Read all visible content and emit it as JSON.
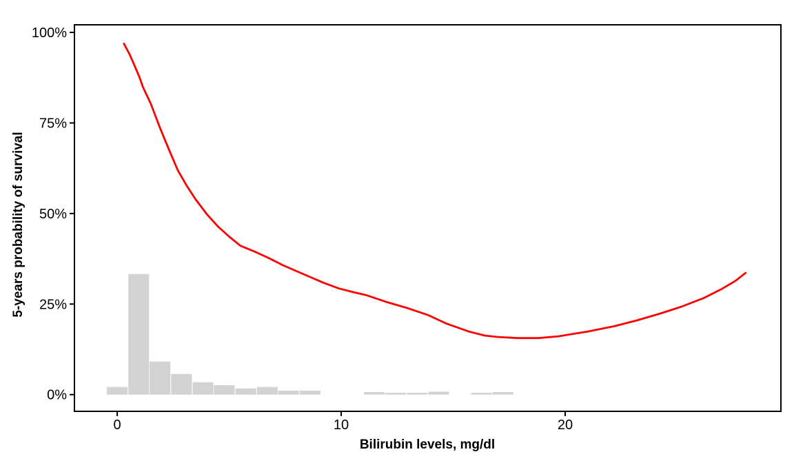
{
  "chart_data": {
    "type": "line",
    "title": "",
    "xlabel": "Bilirubin levels, mg/dl",
    "ylabel": "5-years probability of survival",
    "xlim": [
      -1.91,
      29.63
    ],
    "ylim_pct": [
      -4.62,
      102.1
    ],
    "grid": false,
    "legend": "none",
    "panel_border": true,
    "x_ticks": [
      {
        "label": "0",
        "value": 0
      },
      {
        "label": "10",
        "value": 10
      },
      {
        "label": "20",
        "value": 20
      }
    ],
    "y_ticks": [
      {
        "label": "0%",
        "value": 0
      },
      {
        "label": "25%",
        "value": 25
      },
      {
        "label": "50%",
        "value": 50
      },
      {
        "label": "75%",
        "value": 75
      },
      {
        "label": "100%",
        "value": 100
      }
    ],
    "colors": {
      "curve": "#ff0000",
      "histogram": "#d3d3d3",
      "axis": "#000000",
      "text": "#000000",
      "background": "#ffffff"
    },
    "series": [
      {
        "name": "five-year-survival-smoothed-curve",
        "type": "line",
        "color": "#ff0000",
        "stroke_width": 2.8,
        "points_x_pct": [
          [
            0.3,
            96.9
          ],
          [
            0.55,
            94.0
          ],
          [
            0.75,
            91.2
          ],
          [
            1.0,
            87.5
          ],
          [
            1.15,
            84.9
          ],
          [
            1.5,
            80.3
          ],
          [
            1.9,
            73.8
          ],
          [
            2.3,
            67.8
          ],
          [
            2.7,
            62.0
          ],
          [
            3.1,
            57.7
          ],
          [
            3.5,
            53.9
          ],
          [
            4.0,
            49.8
          ],
          [
            4.5,
            46.4
          ],
          [
            5.0,
            43.6
          ],
          [
            5.5,
            41.1
          ],
          [
            6.2,
            39.3
          ],
          [
            6.8,
            37.6
          ],
          [
            7.4,
            35.7
          ],
          [
            8.0,
            34.1
          ],
          [
            8.6,
            32.5
          ],
          [
            9.2,
            30.9
          ],
          [
            9.9,
            29.3
          ],
          [
            10.6,
            28.2
          ],
          [
            11.1,
            27.5
          ],
          [
            12.0,
            25.6
          ],
          [
            12.9,
            24.0
          ],
          [
            13.9,
            21.9
          ],
          [
            14.7,
            19.6
          ],
          [
            15.7,
            17.4
          ],
          [
            16.4,
            16.3
          ],
          [
            17.0,
            15.9
          ],
          [
            17.9,
            15.6
          ],
          [
            18.8,
            15.6
          ],
          [
            19.7,
            16.1
          ],
          [
            20.3,
            16.7
          ],
          [
            21.0,
            17.4
          ],
          [
            22.2,
            18.9
          ],
          [
            23.2,
            20.5
          ],
          [
            24.2,
            22.3
          ],
          [
            25.2,
            24.3
          ],
          [
            26.2,
            26.7
          ],
          [
            27.0,
            29.2
          ],
          [
            27.6,
            31.4
          ],
          [
            28.05,
            33.6
          ]
        ]
      },
      {
        "name": "bilirubin-distribution-histogram",
        "type": "histogram",
        "color": "#d3d3d3",
        "binwidth": 0.9565,
        "bars": [
          {
            "x": 0.0,
            "height_pct": 2.1
          },
          {
            "x": 0.96,
            "height_pct": 33.3
          },
          {
            "x": 1.91,
            "height_pct": 9.1
          },
          {
            "x": 2.87,
            "height_pct": 5.7
          },
          {
            "x": 3.83,
            "height_pct": 3.4
          },
          {
            "x": 4.78,
            "height_pct": 2.6
          },
          {
            "x": 5.74,
            "height_pct": 1.7
          },
          {
            "x": 6.7,
            "height_pct": 2.1
          },
          {
            "x": 7.65,
            "height_pct": 1.1
          },
          {
            "x": 8.61,
            "height_pct": 1.1
          },
          {
            "x": 11.48,
            "height_pct": 0.7
          },
          {
            "x": 12.43,
            "height_pct": 0.5
          },
          {
            "x": 13.39,
            "height_pct": 0.5
          },
          {
            "x": 14.35,
            "height_pct": 0.8
          },
          {
            "x": 16.26,
            "height_pct": 0.5
          },
          {
            "x": 17.22,
            "height_pct": 0.7
          }
        ]
      }
    ]
  }
}
